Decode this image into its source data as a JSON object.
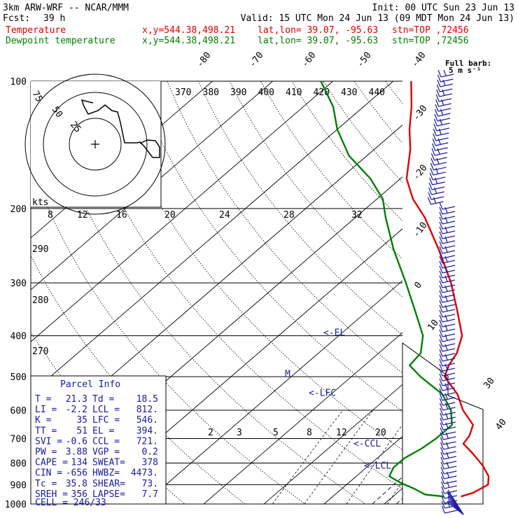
{
  "header": {
    "model": "3km ARW-WRF -- NCAR/MMM",
    "fcst_label": "Fcst:",
    "fcst_hours": "39 h",
    "init": "Init: 00 UTC Sun 23 Jun 13",
    "valid": "Valid: 15 UTC Mon 24 Jun 13 (09 MDT Mon 24 Jun 13)",
    "temp_line": {
      "name": "Temperature",
      "xy": "x,y=544.38,498.21",
      "latlon": "lat,lon= 39.07, -95.63",
      "stn": "stn=TOP ,72456"
    },
    "dew_line": {
      "name": "Dewpoint temperature",
      "xy": "x,y=544.38,498.21",
      "latlon": "lat,lon= 39.07, -95.63",
      "stn": "stn=TOP ,72456"
    },
    "barb_note_1": "Full barb:",
    "barb_note_2": "5 m s⁻¹"
  },
  "parcel_info": {
    "title": "Parcel Info",
    "rows": [
      [
        "T  =",
        "21.3",
        "Td =",
        "18.5"
      ],
      [
        "LI =",
        "-2.2",
        "LCL =",
        "812."
      ],
      [
        "K  =",
        "35",
        "LFC =",
        "546."
      ],
      [
        "TT =",
        "51",
        "EL  =",
        "394."
      ],
      [
        "SVI =",
        "-0.6",
        "CCL =",
        "721."
      ],
      [
        "PW  =",
        "3.88",
        "VGP =",
        "0.2"
      ],
      [
        "CAPE =",
        "134",
        "SWEAT=",
        "378"
      ],
      [
        "CIN  =",
        "-656",
        "HWBZ=",
        "4473."
      ],
      [
        "Tc  =",
        "35.8",
        "SHEAR=",
        "73."
      ],
      [
        "SREH =",
        "356",
        "LAPSE=",
        "7.7"
      ]
    ],
    "cell": "CELL = 246/33"
  },
  "hodograph": {
    "units": "kts",
    "ring_labels": [
      "75",
      "50",
      "25"
    ]
  },
  "colors": {
    "temperature": "#e00000",
    "dewpoint": "#008000",
    "markers": "#1a1aa0",
    "grid": "#000000"
  },
  "chart_data": {
    "type": "line",
    "title": "",
    "xlabel": "",
    "ylabel": "",
    "y_scale": "log",
    "pressure_levels": [
      1000,
      900,
      800,
      700,
      600,
      500,
      400,
      300,
      200,
      100
    ],
    "pressure_labels": [
      "1000",
      "900",
      "800",
      "700",
      "600",
      "500",
      "400",
      "300",
      "200",
      "100"
    ],
    "isotherm_labels": [
      "-80",
      "-70",
      "-60",
      "-50",
      "-40",
      "-30",
      "-20",
      "-10",
      "0",
      "10",
      "30",
      "40"
    ],
    "dry_adiabat_labels": [
      "370",
      "380",
      "390",
      "400",
      "410",
      "420",
      "430",
      "440"
    ],
    "side_adiabat_labels": [
      "290",
      "280",
      "270"
    ],
    "mixing_ratio_labels_upper": [
      "8",
      "12",
      "16",
      "20",
      "24",
      "28",
      "32"
    ],
    "mixing_ratio_labels_lower": [
      "2",
      "3",
      "5",
      "8",
      "12",
      "20"
    ],
    "series": [
      {
        "name": "Temperature",
        "points": [
          {
            "p": 960,
            "t": 21.3
          },
          {
            "p": 940,
            "t": 22.6
          },
          {
            "p": 900,
            "t": 23.5
          },
          {
            "p": 860,
            "t": 22.0
          },
          {
            "p": 812,
            "t": 19.0
          },
          {
            "p": 760,
            "t": 15.0
          },
          {
            "p": 720,
            "t": 11.5
          },
          {
            "p": 690,
            "t": 11.0
          },
          {
            "p": 650,
            "t": 9.5
          },
          {
            "p": 600,
            "t": 5.0
          },
          {
            "p": 550,
            "t": 1.0
          },
          {
            "p": 500,
            "t": -4.5
          },
          {
            "p": 470,
            "t": -6.0
          },
          {
            "p": 440,
            "t": -7.0
          },
          {
            "p": 400,
            "t": -9.5
          },
          {
            "p": 350,
            "t": -15.0
          },
          {
            "p": 300,
            "t": -21.5
          },
          {
            "p": 250,
            "t": -30.0
          },
          {
            "p": 210,
            "t": -38.5
          },
          {
            "p": 190,
            "t": -44.0
          },
          {
            "p": 170,
            "t": -49.0
          },
          {
            "p": 145,
            "t": -54.0
          },
          {
            "p": 130,
            "t": -58.0
          },
          {
            "p": 115,
            "t": -62.0
          },
          {
            "p": 100,
            "t": -67.0
          }
        ]
      },
      {
        "name": "Dewpoint temperature",
        "points": [
          {
            "p": 960,
            "t": 18.5
          },
          {
            "p": 950,
            "t": 15.0
          },
          {
            "p": 920,
            "t": 12.0
          },
          {
            "p": 890,
            "t": 8.5
          },
          {
            "p": 860,
            "t": 5.5
          },
          {
            "p": 820,
            "t": 4.5
          },
          {
            "p": 780,
            "t": 4.5
          },
          {
            "p": 740,
            "t": 5.5
          },
          {
            "p": 700,
            "t": 6.0
          },
          {
            "p": 650,
            "t": 6.0
          },
          {
            "p": 600,
            "t": 3.0
          },
          {
            "p": 550,
            "t": -1.5
          },
          {
            "p": 500,
            "t": -8.5
          },
          {
            "p": 470,
            "t": -12.5
          },
          {
            "p": 440,
            "t": -13.0
          },
          {
            "p": 400,
            "t": -16.0
          },
          {
            "p": 350,
            "t": -22.0
          },
          {
            "p": 300,
            "t": -29.0
          },
          {
            "p": 250,
            "t": -37.5
          },
          {
            "p": 210,
            "t": -45.0
          },
          {
            "p": 190,
            "t": -49.0
          },
          {
            "p": 170,
            "t": -55.0
          },
          {
            "p": 150,
            "t": -63.0
          },
          {
            "p": 130,
            "t": -70.0
          },
          {
            "p": 115,
            "t": -75.0
          },
          {
            "p": 100,
            "t": -82.0
          }
        ]
      }
    ],
    "levels_marked": [
      {
        "label": "<-LCL",
        "p": 812
      },
      {
        "label": "<-CCL",
        "p": 721
      },
      {
        "label": "<-LFC",
        "p": 546
      },
      {
        "label": "<-EL",
        "p": 394
      }
    ],
    "freezing_marker": {
      "label": "M",
      "p": 497
    }
  }
}
